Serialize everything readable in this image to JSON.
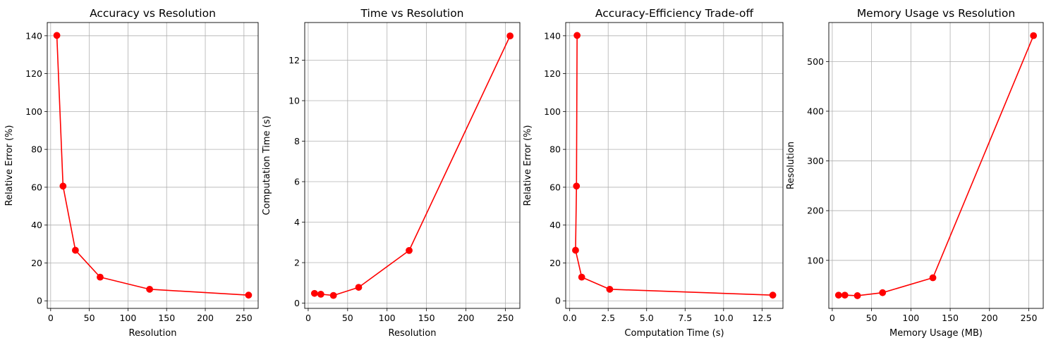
{
  "chart_data": [
    {
      "type": "line",
      "title": "Accuracy vs Resolution",
      "xlabel": "Resolution",
      "ylabel": "Relative Error (%)",
      "xlim": [
        -4.4,
        268.4
      ],
      "ylim": [
        -4.0,
        147.0
      ],
      "xticks": [
        0,
        50,
        100,
        150,
        200,
        250
      ],
      "yticks": [
        0,
        20,
        40,
        60,
        80,
        100,
        120,
        140
      ],
      "grid": true,
      "line_color": "#ff0000",
      "marker": "circle",
      "x": [
        8,
        16,
        32,
        64,
        128,
        256
      ],
      "y": [
        140.2,
        60.6,
        26.7,
        12.5,
        6.1,
        3.0
      ]
    },
    {
      "type": "line",
      "title": "Time vs Resolution",
      "xlabel": "Resolution",
      "ylabel": "Computation Time (s)",
      "xlim": [
        -4.4,
        268.4
      ],
      "ylim": [
        -0.26,
        13.86
      ],
      "xticks": [
        0,
        50,
        100,
        150,
        200,
        250
      ],
      "yticks": [
        0,
        2,
        4,
        6,
        8,
        10,
        12
      ],
      "grid": true,
      "line_color": "#ff0000",
      "marker": "circle",
      "x": [
        8,
        16,
        32,
        64,
        128,
        256
      ],
      "y": [
        0.48,
        0.44,
        0.38,
        0.78,
        2.6,
        13.2
      ]
    },
    {
      "type": "line",
      "title": "Accuracy-Efficiency Trade-off",
      "xlabel": "Computation Time (s)",
      "ylabel": "Relative Error (%)",
      "xlim": [
        -0.26,
        13.86
      ],
      "ylim": [
        -4.0,
        147.0
      ],
      "xticks": [
        0.0,
        2.5,
        5.0,
        7.5,
        10.0,
        12.5
      ],
      "xtick_labels": [
        "0.0",
        "2.5",
        "5.0",
        "7.5",
        "10.0",
        "12.5"
      ],
      "yticks": [
        0,
        20,
        40,
        60,
        80,
        100,
        120,
        140
      ],
      "grid": true,
      "line_color": "#ff0000",
      "marker": "circle",
      "x": [
        0.48,
        0.44,
        0.38,
        0.78,
        2.6,
        13.2
      ],
      "y": [
        140.2,
        60.6,
        26.7,
        12.5,
        6.1,
        3.0
      ]
    },
    {
      "type": "line",
      "title": "Memory Usage vs Resolution",
      "xlabel": "Memory Usage (MB)",
      "ylabel": "Resolution",
      "xlim": [
        -4.4,
        268.4
      ],
      "ylim": [
        3.4,
        578.4
      ],
      "xticks": [
        0,
        50,
        100,
        150,
        200,
        250
      ],
      "yticks": [
        100,
        200,
        300,
        400,
        500
      ],
      "grid": true,
      "line_color": "#ff0000",
      "marker": "circle",
      "x": [
        8,
        16,
        32,
        64,
        128,
        256
      ],
      "y": [
        30,
        30,
        29,
        35,
        65,
        552
      ]
    }
  ]
}
